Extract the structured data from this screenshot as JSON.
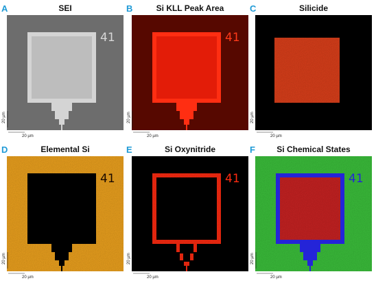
{
  "panels": [
    {
      "letter": "A",
      "title": "SEI",
      "marker": "41",
      "scale_y_label": "20 µm",
      "scale_x_label": "20 µm"
    },
    {
      "letter": "B",
      "title": "Si KLL Peak Area",
      "marker": "41",
      "scale_y_label": "20 µm",
      "scale_x_label": "20 µm"
    },
    {
      "letter": "C",
      "title": "Silicide",
      "scale_y_label": "20 µm",
      "scale_x_label": "20 µm"
    },
    {
      "letter": "D",
      "title": "Elemental Si",
      "marker": "41",
      "scale_y_label": "20 µm",
      "scale_x_label": "20 µm"
    },
    {
      "letter": "E",
      "title": "Si Oxynitride",
      "marker": "41",
      "scale_y_label": "20 µm",
      "scale_x_label": "20 µm"
    },
    {
      "letter": "F",
      "title": "Si Chemical States",
      "marker": "41",
      "scale_y_label": "20 µm",
      "scale_x_label": "20 µm"
    }
  ]
}
